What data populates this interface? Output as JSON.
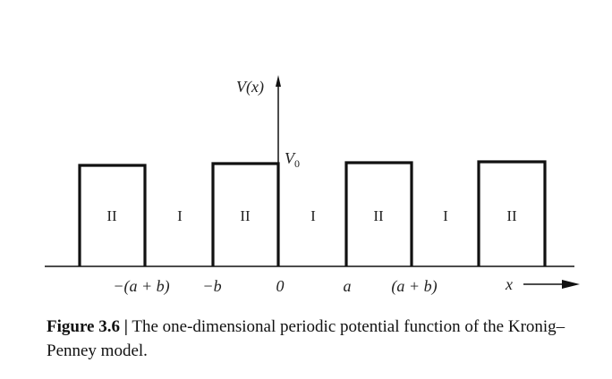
{
  "diagram": {
    "axis_labels": {
      "y": "V(x)",
      "potential_level": "V",
      "potential_level_subscript": "0",
      "x": "x"
    },
    "x_ticks": [
      {
        "key": "neg_a_plus_b",
        "label": "−(a + b)"
      },
      {
        "key": "neg_b",
        "label": "−b"
      },
      {
        "key": "zero",
        "label": "0"
      },
      {
        "key": "a",
        "label": "a"
      },
      {
        "key": "a_plus_b",
        "label": "(a + b)"
      }
    ],
    "regions": [
      "II",
      "I",
      "II",
      "I",
      "II",
      "I",
      "II"
    ]
  },
  "caption": {
    "label": "Figure 3.6 |",
    "text": "The one-dimensional periodic potential function of the Kronig–Penney model."
  },
  "colors": {
    "ink": "#111111"
  }
}
